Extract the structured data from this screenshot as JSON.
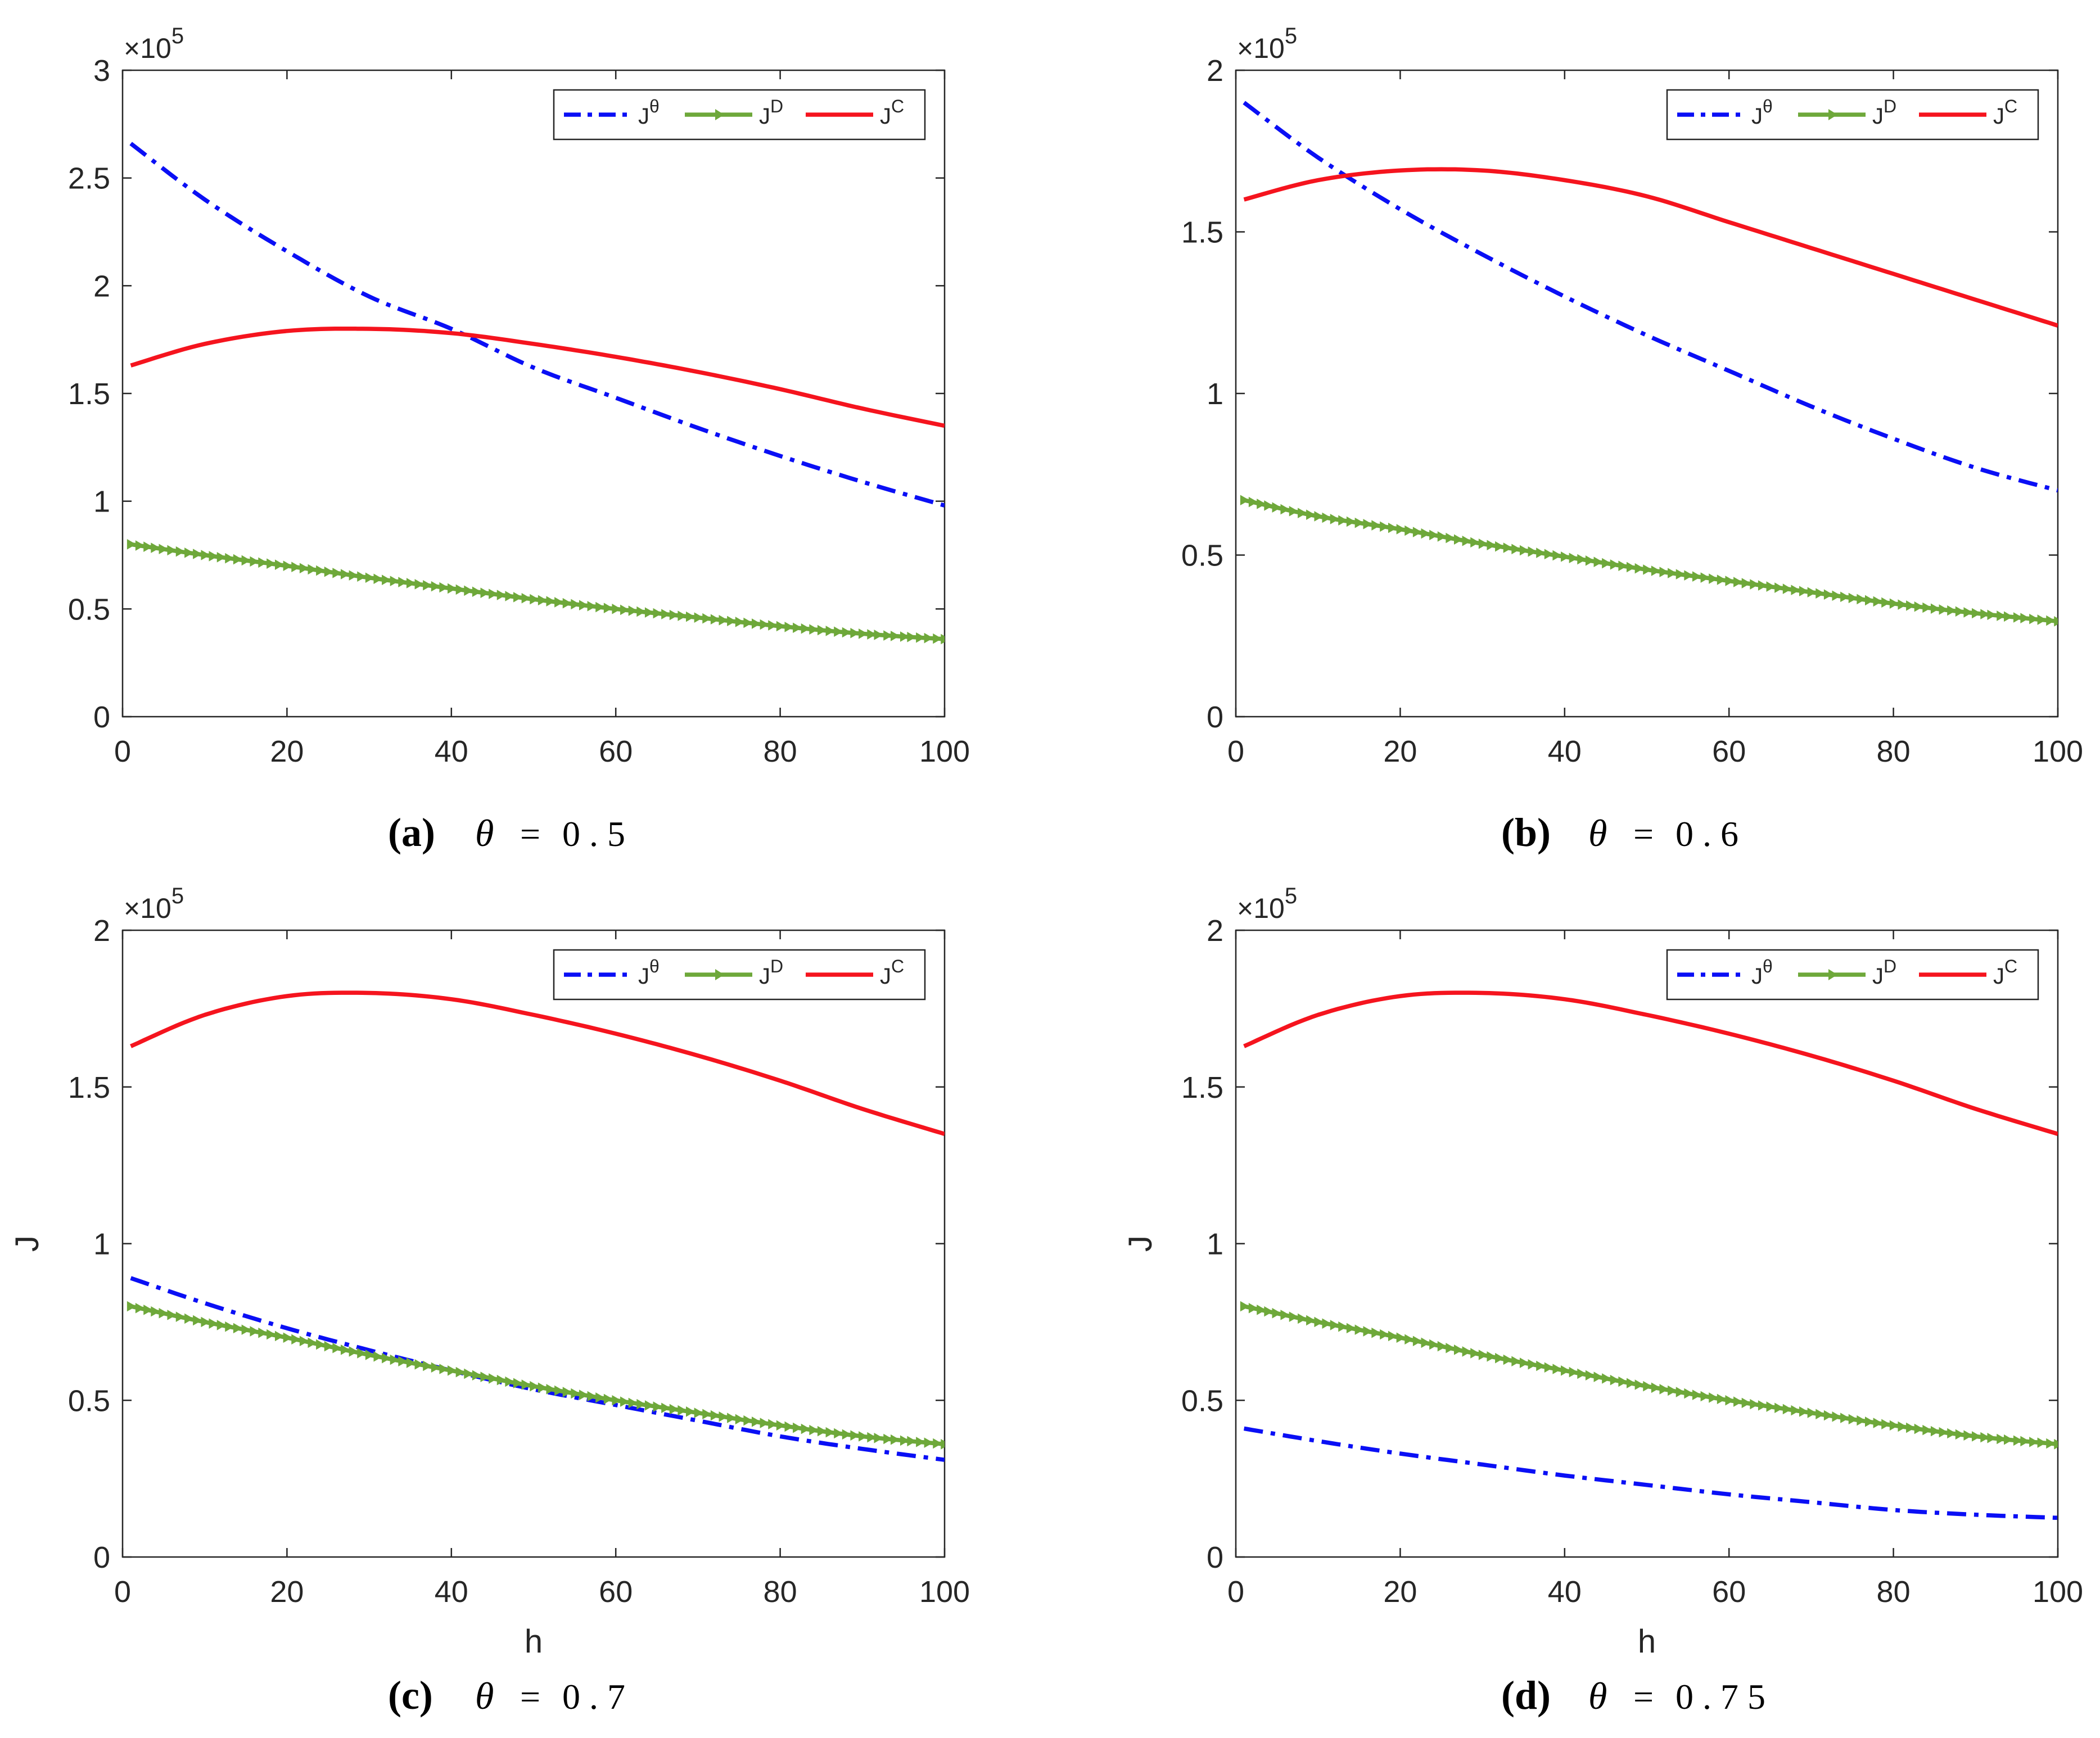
{
  "figure": {
    "colors": {
      "j_theta": "#0a0ff5",
      "j_d": "#6ea83a",
      "j_c": "#f5141e",
      "axis": "#262626"
    }
  },
  "chart_data": [
    {
      "id": "a",
      "type": "line",
      "caption_label": "(a)",
      "caption_param": "θ",
      "caption_eq": "=",
      "caption_value": "0.5",
      "exponent_label": "×10",
      "exponent_power": "5",
      "xlabel": "",
      "ylabel": "",
      "xlim": [
        0,
        100
      ],
      "ylim": [
        0,
        3
      ],
      "xticks": [
        "0",
        "20",
        "40",
        "60",
        "80",
        "100"
      ],
      "yticks": [
        "0",
        "0.5",
        "1",
        "1.5",
        "2",
        "2.5",
        "3"
      ],
      "legend_position": "top-right",
      "series": [
        {
          "name": "J",
          "sup": "θ",
          "style": "dashdot",
          "x": [
            1,
            10,
            20,
            30,
            40,
            50,
            60,
            70,
            80,
            90,
            100
          ],
          "values": [
            2.66,
            2.4,
            2.16,
            1.95,
            1.8,
            1.62,
            1.48,
            1.34,
            1.21,
            1.09,
            0.98
          ]
        },
        {
          "name": "J",
          "sup": "D",
          "style": "markers",
          "x": [
            1,
            10,
            20,
            30,
            40,
            50,
            60,
            70,
            80,
            90,
            100
          ],
          "values": [
            0.8,
            0.75,
            0.7,
            0.645,
            0.595,
            0.545,
            0.5,
            0.46,
            0.42,
            0.385,
            0.36
          ]
        },
        {
          "name": "J",
          "sup": "C",
          "style": "solid",
          "x": [
            1,
            10,
            20,
            30,
            40,
            50,
            60,
            70,
            80,
            90,
            100
          ],
          "values": [
            1.63,
            1.73,
            1.79,
            1.8,
            1.78,
            1.73,
            1.67,
            1.6,
            1.52,
            1.43,
            1.35
          ]
        }
      ]
    },
    {
      "id": "b",
      "type": "line",
      "caption_label": "(b)",
      "caption_param": "θ",
      "caption_eq": "=",
      "caption_value": "0.6",
      "exponent_label": "×10",
      "exponent_power": "5",
      "xlabel": "",
      "ylabel": "",
      "xlim": [
        0,
        100
      ],
      "ylim": [
        0,
        2
      ],
      "xticks": [
        "0",
        "20",
        "40",
        "60",
        "80",
        "100"
      ],
      "yticks": [
        "0",
        "0.5",
        "1",
        "1.5",
        "2"
      ],
      "legend_position": "top-right",
      "series": [
        {
          "name": "J",
          "sup": "θ",
          "style": "dashdot",
          "x": [
            1,
            10,
            20,
            30,
            40,
            50,
            60,
            70,
            80,
            90,
            100
          ],
          "values": [
            1.9,
            1.73,
            1.57,
            1.43,
            1.3,
            1.18,
            1.07,
            0.96,
            0.86,
            0.77,
            0.7
          ]
        },
        {
          "name": "J",
          "sup": "D",
          "style": "markers",
          "x": [
            1,
            10,
            20,
            30,
            40,
            50,
            60,
            70,
            80,
            90,
            100
          ],
          "values": [
            0.67,
            0.62,
            0.58,
            0.535,
            0.495,
            0.455,
            0.42,
            0.385,
            0.35,
            0.32,
            0.295
          ]
        },
        {
          "name": "J",
          "sup": "C",
          "style": "solid",
          "x": [
            1,
            10,
            20,
            30,
            40,
            50,
            60,
            70,
            80,
            90,
            100
          ],
          "values": [
            1.6,
            1.66,
            1.69,
            1.69,
            1.66,
            1.61,
            1.53,
            1.45,
            1.37,
            1.29,
            1.21
          ]
        }
      ]
    },
    {
      "id": "c",
      "type": "line",
      "caption_label": "(c)",
      "caption_param": "θ",
      "caption_eq": "=",
      "caption_value": "0.7",
      "exponent_label": "×10",
      "exponent_power": "5",
      "xlabel": "h",
      "ylabel": "J",
      "xlim": [
        0,
        100
      ],
      "ylim": [
        0,
        2
      ],
      "xticks": [
        "0",
        "20",
        "40",
        "60",
        "80",
        "100"
      ],
      "yticks": [
        "0",
        "0.5",
        "1",
        "1.5",
        "2"
      ],
      "legend_position": "top-right",
      "series": [
        {
          "name": "J",
          "sup": "θ",
          "style": "dashdot",
          "x": [
            1,
            10,
            20,
            30,
            40,
            50,
            60,
            70,
            80,
            90,
            100
          ],
          "values": [
            0.89,
            0.81,
            0.73,
            0.66,
            0.595,
            0.535,
            0.485,
            0.435,
            0.385,
            0.345,
            0.31
          ]
        },
        {
          "name": "J",
          "sup": "D",
          "style": "markers",
          "x": [
            1,
            10,
            20,
            30,
            40,
            50,
            60,
            70,
            80,
            90,
            100
          ],
          "values": [
            0.8,
            0.75,
            0.7,
            0.645,
            0.595,
            0.545,
            0.5,
            0.46,
            0.42,
            0.385,
            0.36
          ]
        },
        {
          "name": "J",
          "sup": "C",
          "style": "solid",
          "x": [
            1,
            10,
            20,
            30,
            40,
            50,
            60,
            70,
            80,
            90,
            100
          ],
          "values": [
            1.63,
            1.73,
            1.79,
            1.8,
            1.78,
            1.73,
            1.67,
            1.6,
            1.52,
            1.43,
            1.35
          ]
        }
      ]
    },
    {
      "id": "d",
      "type": "line",
      "caption_label": "(d)",
      "caption_param": "θ",
      "caption_eq": "=",
      "caption_value": "0.75",
      "exponent_label": "×10",
      "exponent_power": "5",
      "xlabel": "h",
      "ylabel": "J",
      "xlim": [
        0,
        100
      ],
      "ylim": [
        0,
        2
      ],
      "xticks": [
        "0",
        "20",
        "40",
        "60",
        "80",
        "100"
      ],
      "yticks": [
        "0",
        "0.5",
        "1",
        "1.5",
        "2"
      ],
      "legend_position": "top-right",
      "series": [
        {
          "name": "J",
          "sup": "θ",
          "style": "dashdot",
          "x": [
            1,
            10,
            20,
            30,
            40,
            50,
            60,
            70,
            80,
            90,
            100
          ],
          "values": [
            0.41,
            0.37,
            0.33,
            0.295,
            0.26,
            0.23,
            0.2,
            0.175,
            0.15,
            0.135,
            0.125
          ]
        },
        {
          "name": "J",
          "sup": "D",
          "style": "markers",
          "x": [
            1,
            10,
            20,
            30,
            40,
            50,
            60,
            70,
            80,
            90,
            100
          ],
          "values": [
            0.8,
            0.75,
            0.7,
            0.645,
            0.595,
            0.545,
            0.5,
            0.46,
            0.42,
            0.385,
            0.36
          ]
        },
        {
          "name": "J",
          "sup": "C",
          "style": "solid",
          "x": [
            1,
            10,
            20,
            30,
            40,
            50,
            60,
            70,
            80,
            90,
            100
          ],
          "values": [
            1.63,
            1.73,
            1.79,
            1.8,
            1.78,
            1.73,
            1.67,
            1.6,
            1.52,
            1.43,
            1.35
          ]
        }
      ]
    }
  ]
}
